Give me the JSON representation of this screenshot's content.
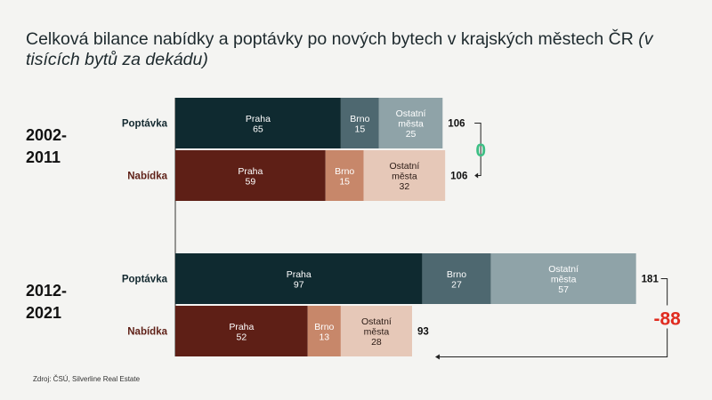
{
  "title": "Celková bilance nabídky a poptávky po nových bytech v krajských městech ČR",
  "subtitle": "(v tisících bytů za dekádu)",
  "source": "Zdroj: ČSÚ, Silverline Real Estate",
  "colors": {
    "poptavka_label": "#12282f",
    "nabidka_label": "#5e1f16",
    "poptavka": [
      "#0f2a30",
      "#4e6870",
      "#8fa3a8"
    ],
    "nabidka": [
      "#5e1f16",
      "#c7876a",
      "#e6c8b8"
    ],
    "balance_zero": "#3dbf85",
    "balance_negative": "#e02b1f"
  },
  "chart_data": {
    "type": "bar",
    "orientation": "horizontal",
    "stacked": true,
    "groups": [
      {
        "period": [
          "2002-",
          "2011"
        ],
        "bars": [
          {
            "label": "Poptávka",
            "segments": [
              {
                "name": "Praha",
                "value": 65
              },
              {
                "name": "Brno",
                "value": 15
              },
              {
                "name": "Ostatní\nměsta",
                "value": 25
              }
            ],
            "total": 106
          },
          {
            "label": "Nabídka",
            "segments": [
              {
                "name": "Praha",
                "value": 59
              },
              {
                "name": "Brno",
                "value": 15
              },
              {
                "name": "Ostatní\nměsta",
                "value": 32
              }
            ],
            "total": 106
          }
        ],
        "balance": "0"
      },
      {
        "period": [
          "2012-",
          "2021"
        ],
        "bars": [
          {
            "label": "Poptávka",
            "segments": [
              {
                "name": "Praha",
                "value": 97
              },
              {
                "name": "Brno",
                "value": 27
              },
              {
                "name": "Ostatní\nměsta",
                "value": 57
              }
            ],
            "total": 181
          },
          {
            "label": "Nabídka",
            "segments": [
              {
                "name": "Praha",
                "value": 52
              },
              {
                "name": "Brno",
                "value": 13
              },
              {
                "name": "Ostatní\nměsta",
                "value": 28
              }
            ],
            "total": 93
          }
        ],
        "balance": "-88"
      }
    ]
  }
}
